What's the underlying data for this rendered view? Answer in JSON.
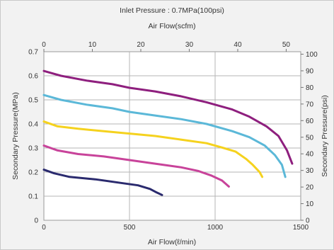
{
  "chart_data": {
    "type": "line",
    "title": "Inlet Pressure : 0.7MPa(100psi)",
    "top_xlabel": "Air Flow(scfm)",
    "xlabel": "Air Flow(ℓ/min)",
    "ylabel_left": "Secondary Pressure(MPa)",
    "ylabel_right": "Secondary Pressure(psi)",
    "xlim": [
      0,
      1500
    ],
    "ylim": [
      0,
      0.7
    ],
    "top_xlim": [
      0,
      53
    ],
    "right_ylim": [
      0,
      101.5
    ],
    "x_ticks": [
      "0",
      "500",
      "1000",
      "1500"
    ],
    "y_ticks": [
      "0",
      "0.1",
      "0.2",
      "0.3",
      "0.4",
      "0.5",
      "0.6",
      "0.7"
    ],
    "top_x_ticks": [
      "0",
      "10",
      "20",
      "30",
      "40",
      "50"
    ],
    "right_y_ticks": [
      "0",
      "10",
      "20",
      "30",
      "40",
      "50",
      "60",
      "70",
      "80",
      "90",
      "100"
    ],
    "grid": true,
    "series": [
      {
        "color": "#8e1f7e",
        "points": [
          [
            0,
            0.62
          ],
          [
            100,
            0.6
          ],
          [
            250,
            0.58
          ],
          [
            400,
            0.565
          ],
          [
            500,
            0.55
          ],
          [
            650,
            0.535
          ],
          [
            800,
            0.515
          ],
          [
            950,
            0.49
          ],
          [
            1100,
            0.46
          ],
          [
            1200,
            0.43
          ],
          [
            1300,
            0.39
          ],
          [
            1370,
            0.35
          ],
          [
            1420,
            0.29
          ],
          [
            1450,
            0.235
          ]
        ]
      },
      {
        "color": "#5bb8d8",
        "points": [
          [
            0,
            0.52
          ],
          [
            100,
            0.5
          ],
          [
            250,
            0.48
          ],
          [
            400,
            0.465
          ],
          [
            500,
            0.45
          ],
          [
            650,
            0.435
          ],
          [
            800,
            0.42
          ],
          [
            950,
            0.4
          ],
          [
            1100,
            0.37
          ],
          [
            1200,
            0.345
          ],
          [
            1290,
            0.31
          ],
          [
            1350,
            0.27
          ],
          [
            1390,
            0.23
          ],
          [
            1410,
            0.18
          ]
        ]
      },
      {
        "color": "#f5d21e",
        "points": [
          [
            0,
            0.41
          ],
          [
            80,
            0.39
          ],
          [
            200,
            0.38
          ],
          [
            350,
            0.37
          ],
          [
            500,
            0.36
          ],
          [
            650,
            0.35
          ],
          [
            800,
            0.335
          ],
          [
            950,
            0.32
          ],
          [
            1050,
            0.3
          ],
          [
            1120,
            0.285
          ],
          [
            1180,
            0.255
          ],
          [
            1220,
            0.23
          ],
          [
            1260,
            0.2
          ],
          [
            1275,
            0.18
          ]
        ]
      },
      {
        "color": "#c8439a",
        "points": [
          [
            0,
            0.31
          ],
          [
            80,
            0.29
          ],
          [
            200,
            0.275
          ],
          [
            350,
            0.265
          ],
          [
            500,
            0.25
          ],
          [
            650,
            0.235
          ],
          [
            800,
            0.22
          ],
          [
            900,
            0.205
          ],
          [
            980,
            0.185
          ],
          [
            1040,
            0.165
          ],
          [
            1080,
            0.14
          ]
        ]
      },
      {
        "color": "#2a2a6e",
        "points": [
          [
            0,
            0.21
          ],
          [
            60,
            0.195
          ],
          [
            150,
            0.18
          ],
          [
            300,
            0.17
          ],
          [
            450,
            0.155
          ],
          [
            550,
            0.145
          ],
          [
            620,
            0.13
          ],
          [
            660,
            0.115
          ],
          [
            690,
            0.105
          ]
        ]
      }
    ]
  }
}
